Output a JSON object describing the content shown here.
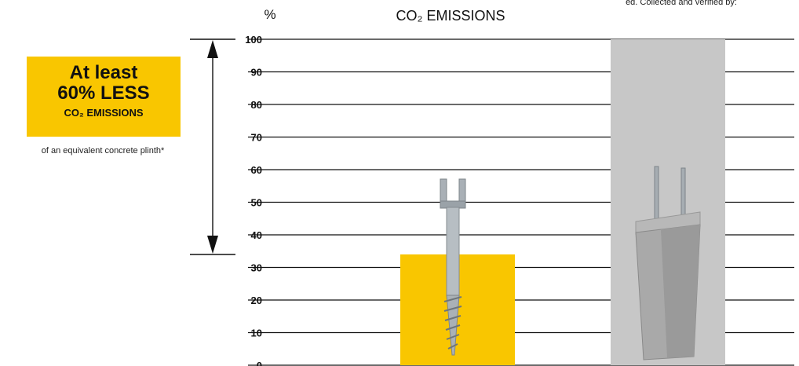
{
  "chart_data": {
    "type": "bar",
    "title": "CO₂ EMISSIONS",
    "unit": "%",
    "categories": [
      "",
      ""
    ],
    "values": [
      34,
      100
    ],
    "colors": [
      "#f9c600",
      "#c7c7c7"
    ],
    "ylim": [
      0,
      100
    ],
    "yticks": [
      "0",
      "10",
      "20",
      "30",
      "40",
      "50",
      "60",
      "70",
      "80",
      "90",
      "100"
    ],
    "grid": true,
    "reduction_arrow": {
      "from": 100,
      "to": 34
    }
  },
  "top_note": "ed. Collected and verified by:",
  "callout": {
    "line1": "At least",
    "line2": "60% LESS",
    "line3": "CO₂ EMISSIONS",
    "note": "of an equivalent concrete plinth*"
  },
  "icons": {
    "bar1": "ground-screw-icon",
    "bar2": "concrete-plinth-icon"
  }
}
